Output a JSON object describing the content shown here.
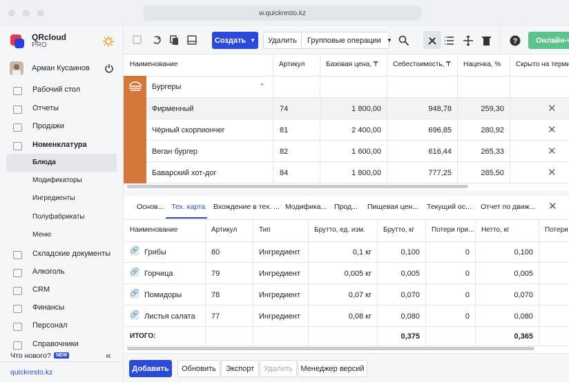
{
  "browser": {
    "url": "w.quickresto.kz"
  },
  "sidebar": {
    "brand": "QRcloud",
    "plan": "PRO",
    "user": "Арман Кусаинов",
    "menu_top": [
      "Рабочий стол",
      "Отчеты",
      "Продажи",
      "Номенклатура"
    ],
    "submenu": [
      "Блюда",
      "Модификаторы",
      "Ингредиенты",
      "Полуфабрикаты",
      "Меню"
    ],
    "menu_bottom": [
      "Складские документы",
      "Алкоголь",
      "CRM",
      "Финансы",
      "Персонал",
      "Справочники"
    ],
    "whats_new": "Что нового?",
    "new_badge": "NEW",
    "footer_link": "quickresto.kz"
  },
  "toolbar": {
    "create": "Создать",
    "delete": "Удалить",
    "group_ops": "Групповые операции",
    "chat": "Онлайн-ча"
  },
  "dishes_table": {
    "headers": [
      "Наименование",
      "Артикул",
      "Базовая цена, ₸",
      "Себестоимость, ₸",
      "Наценка, %",
      "Скрыто на терми"
    ],
    "group": "Бургеры",
    "rows": [
      [
        "Фирменный",
        "74",
        "1 800,00",
        "948,78",
        "259,30"
      ],
      [
        "Чёрный скорпиончег",
        "81",
        "2 400,00",
        "696,85",
        "280,92"
      ],
      [
        "Веган бургер",
        "82",
        "1 600,00",
        "616,44",
        "265,33"
      ],
      [
        "Баварский хот-дог",
        "84",
        "1 800,00",
        "777,25",
        "285,50"
      ]
    ]
  },
  "tabs": [
    "Основ...",
    "Тех. карта",
    "Вхождение в тех. ...",
    "Модифика...",
    "Прод...",
    "Пищевая цен...",
    "Текущий ос...",
    "Отчет по движ..."
  ],
  "tech_card": {
    "headers": [
      "Наименование",
      "Артикул",
      "Тип",
      "Брутто, ед. изм.",
      "Брутто, кг",
      "Потери при...",
      "Нетто, кг",
      "Потери"
    ],
    "rows": [
      [
        "Грибы",
        "80",
        "Ингредиент",
        "0,1 кг",
        "0,100",
        "0",
        "0,100"
      ],
      [
        "Горчица",
        "79",
        "Ингредиент",
        "0,005 кг",
        "0,005",
        "0",
        "0,005"
      ],
      [
        "Помидоры",
        "78",
        "Ингредиент",
        "0,07 кг",
        "0,070",
        "0",
        "0,070"
      ],
      [
        "Листья салата",
        "77",
        "Ингредиент",
        "0,08 кг",
        "0,080",
        "0",
        "0,080"
      ]
    ],
    "total": {
      "label": "ИТОГО:",
      "brutto_kg": "0,375",
      "netto_kg": "0,365"
    }
  },
  "footer_buttons": [
    "Добавить",
    "Обновить",
    "Экспорт",
    "Удалить",
    "Менеджер версий"
  ]
}
